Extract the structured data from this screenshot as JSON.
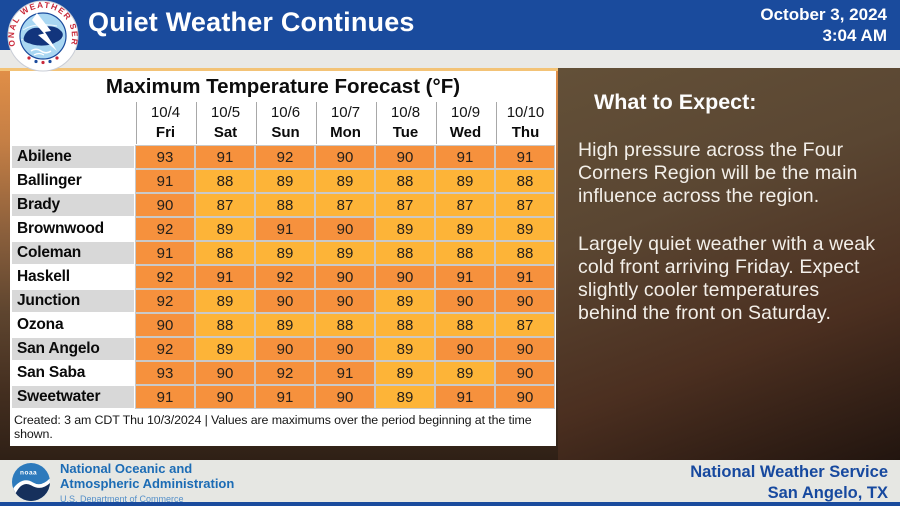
{
  "header": {
    "title": "Quiet Weather Continues",
    "date": "October 3, 2024",
    "time": "3:04 AM",
    "nws_ring_text": "NATIONAL WEATHER SERVICE",
    "bar_color": "#1a4b9d"
  },
  "table": {
    "title": "Maximum Temperature Forecast (°F)",
    "columns": [
      {
        "date": "10/4",
        "day": "Fri"
      },
      {
        "date": "10/5",
        "day": "Sat"
      },
      {
        "date": "10/6",
        "day": "Sun"
      },
      {
        "date": "10/7",
        "day": "Mon"
      },
      {
        "date": "10/8",
        "day": "Tue"
      },
      {
        "date": "10/9",
        "day": "Wed"
      },
      {
        "date": "10/10",
        "day": "Thu"
      }
    ],
    "rows": [
      {
        "city": "Abilene",
        "values": [
          93,
          91,
          92,
          90,
          90,
          91,
          91
        ]
      },
      {
        "city": "Ballinger",
        "values": [
          91,
          88,
          89,
          89,
          88,
          89,
          88
        ]
      },
      {
        "city": "Brady",
        "values": [
          90,
          87,
          88,
          87,
          87,
          87,
          87
        ]
      },
      {
        "city": "Brownwood",
        "values": [
          92,
          89,
          91,
          90,
          89,
          89,
          89
        ]
      },
      {
        "city": "Coleman",
        "values": [
          91,
          88,
          89,
          89,
          88,
          88,
          88
        ]
      },
      {
        "city": "Haskell",
        "values": [
          92,
          91,
          92,
          90,
          90,
          91,
          91
        ]
      },
      {
        "city": "Junction",
        "values": [
          92,
          89,
          90,
          90,
          89,
          90,
          90
        ]
      },
      {
        "city": "Ozona",
        "values": [
          90,
          88,
          89,
          88,
          88,
          88,
          87
        ]
      },
      {
        "city": "San Angelo",
        "values": [
          92,
          89,
          90,
          90,
          89,
          90,
          90
        ]
      },
      {
        "city": "San Saba",
        "values": [
          93,
          90,
          92,
          91,
          89,
          89,
          90
        ]
      },
      {
        "city": "Sweetwater",
        "values": [
          91,
          90,
          91,
          90,
          89,
          91,
          90
        ]
      }
    ],
    "footnote": "Created: 3 am CDT Thu 10/3/2024  |  Values are maximums over the period beginning at the time shown.",
    "colors": {
      "hot": "#f6913d",
      "warm": "#fdb438",
      "hot_threshold": 90
    }
  },
  "panel": {
    "heading": "What to Expect:",
    "paragraphs": [
      "High pressure across the Four Corners Region will be the main influence across the region.",
      "Largely quiet weather with a weak cold front arriving Friday. Expect slightly cooler temperatures behind the front on Saturday."
    ]
  },
  "footer": {
    "noaa_logo_text": "noaa",
    "noaa_line1": "National Oceanic and",
    "noaa_line2": "Atmospheric Administration",
    "noaa_line3": "U.S. Department of Commerce",
    "org": "National Weather Service",
    "location": "San Angelo, TX"
  }
}
